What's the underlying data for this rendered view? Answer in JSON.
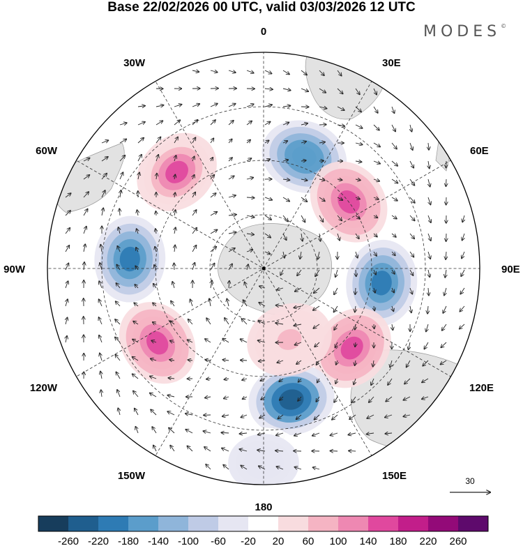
{
  "title": "Base 22/02/2026 00 UTC, valid 03/03/2026 12 UTC",
  "brand": "MODES",
  "brand_mark": "©",
  "longitude_labels": {
    "n0": "0",
    "e30": "30E",
    "e60": "60E",
    "e90": "90E",
    "e120": "120E",
    "e150": "150E",
    "s180": "180",
    "w150": "150W",
    "w120": "120W",
    "w90": "90W",
    "w60": "60W",
    "w30": "30W"
  },
  "wind_reference": {
    "value": "30"
  },
  "colorbar": {
    "ticks": [
      "-260",
      "-220",
      "-180",
      "-140",
      "-100",
      "-60",
      "-20",
      "20",
      "60",
      "100",
      "140",
      "180",
      "220",
      "260"
    ],
    "colors": [
      "#173d5c",
      "#1f5e8e",
      "#2e7bb4",
      "#5b9dcb",
      "#8fb5da",
      "#bfcbe6",
      "#e6e6f2",
      "#ffffff",
      "#f8dcdf",
      "#f5b4c3",
      "#ee88b2",
      "#e0489e",
      "#c21e8a",
      "#930a78",
      "#5e0a6c"
    ]
  },
  "anomalies": [
    {
      "lon": 20,
      "r": 0.55,
      "value": -180
    },
    {
      "lon": 52,
      "r": 0.5,
      "value": 150
    },
    {
      "lon": 97,
      "r": 0.55,
      "value": -200
    },
    {
      "lon": 132,
      "r": 0.55,
      "value": 150
    },
    {
      "lon": 168,
      "r": 0.62,
      "value": -240
    },
    {
      "lon": -125,
      "r": 0.6,
      "value": 160
    },
    {
      "lon": -86,
      "r": 0.62,
      "value": -200
    },
    {
      "lon": -42,
      "r": 0.6,
      "value": 140
    },
    {
      "lon": 180,
      "r": 0.9,
      "value": -60
    },
    {
      "lon": 160,
      "r": 0.35,
      "value": 60
    }
  ]
}
